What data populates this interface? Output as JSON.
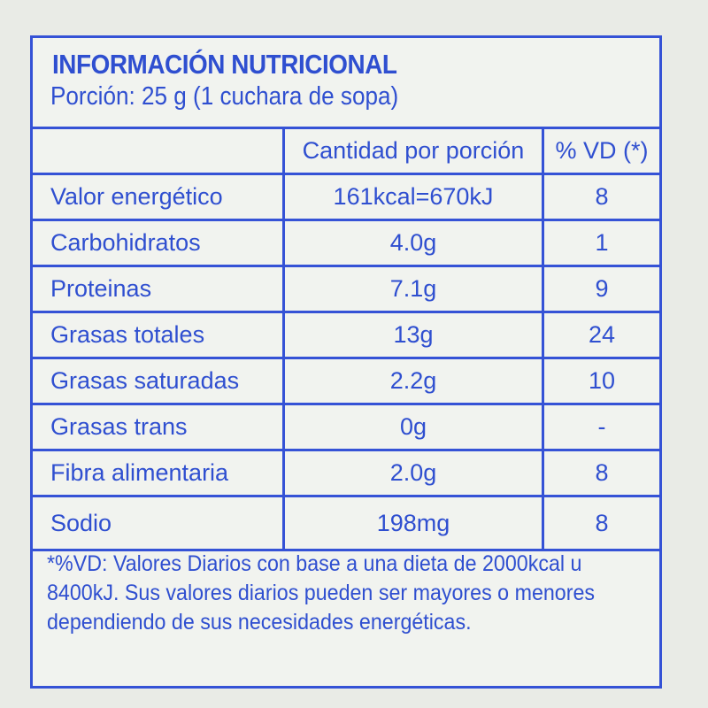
{
  "title": "INFORMACIÓN NUTRICIONAL",
  "portion": "Porción: 25 g (1 cuchara de sopa)",
  "headers": {
    "amount": "Cantidad por porción",
    "vd": "% VD (*)"
  },
  "rows": [
    {
      "name": "Valor energético",
      "amount": "161kcal=670kJ",
      "vd": "8"
    },
    {
      "name": "Carbohidratos",
      "amount": "4.0g",
      "vd": "1"
    },
    {
      "name": "Proteinas",
      "amount": "7.1g",
      "vd": "9"
    },
    {
      "name": "Grasas totales",
      "amount": "13g",
      "vd": "24"
    },
    {
      "name": "Grasas saturadas",
      "amount": "2.2g",
      "vd": "10"
    },
    {
      "name": "Grasas trans",
      "amount": "0g",
      "vd": "-"
    },
    {
      "name": "Fibra alimentaria",
      "amount": "2.0g",
      "vd": "8"
    },
    {
      "name": "Sodio",
      "amount": "198mg",
      "vd": "8"
    }
  ],
  "footnote": "*%VD: Valores Diarios con base a una dieta de 2000kcal u 8400kJ. Sus valores diarios pueden ser mayores o menores dependiendo de sus necesidades energéticas."
}
